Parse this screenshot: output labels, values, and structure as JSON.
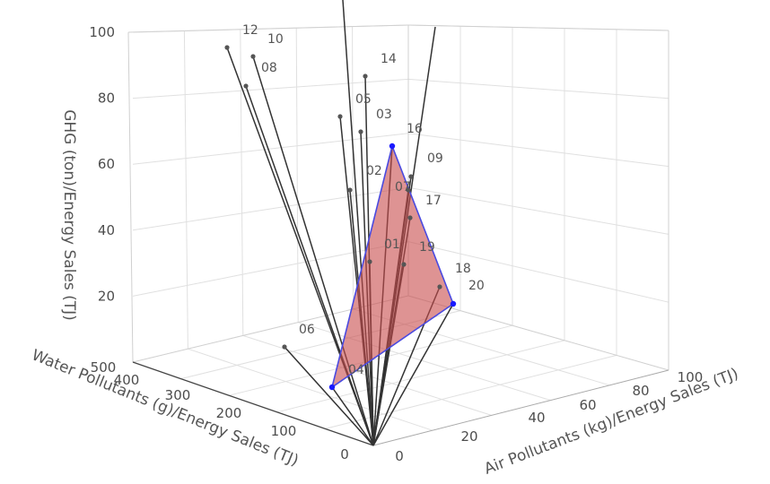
{
  "chart_data": {
    "type": "scatter3d",
    "axes": {
      "x": {
        "label": "Air Pollutants (kg)/Energy Sales (TJ)",
        "ticks": [
          "0",
          "20",
          "40",
          "60",
          "80",
          "100"
        ]
      },
      "y": {
        "label": "Water Pollutants (g)/Energy Sales (TJ)",
        "ticks": [
          "0",
          "100",
          "200",
          "300",
          "400",
          "500"
        ]
      },
      "z": {
        "label": "GHG (ton)/Energy Sales (TJ)",
        "ticks": [
          "20",
          "40",
          "60",
          "80",
          "100"
        ]
      }
    },
    "grid": true,
    "stems_from_origin": true,
    "points": [
      {
        "label": "01"
      },
      {
        "label": "02"
      },
      {
        "label": "03"
      },
      {
        "label": "04"
      },
      {
        "label": "05"
      },
      {
        "label": "06"
      },
      {
        "label": "07"
      },
      {
        "label": "08"
      },
      {
        "label": "09"
      },
      {
        "label": "10"
      },
      {
        "label": "12"
      },
      {
        "label": "14"
      },
      {
        "label": "16"
      },
      {
        "label": "17"
      },
      {
        "label": "18"
      },
      {
        "label": "19"
      },
      {
        "label": "20"
      }
    ],
    "frontier": {
      "labels": [
        "04",
        "16",
        "20"
      ]
    },
    "colors": {
      "stem": "#333333",
      "point": "#555555",
      "frontier_vertex": "#1a1aff",
      "frontier_edge": "#4a4ae0",
      "frontier_fill": "#c84b4b",
      "grid": "#e0e0e0"
    }
  }
}
